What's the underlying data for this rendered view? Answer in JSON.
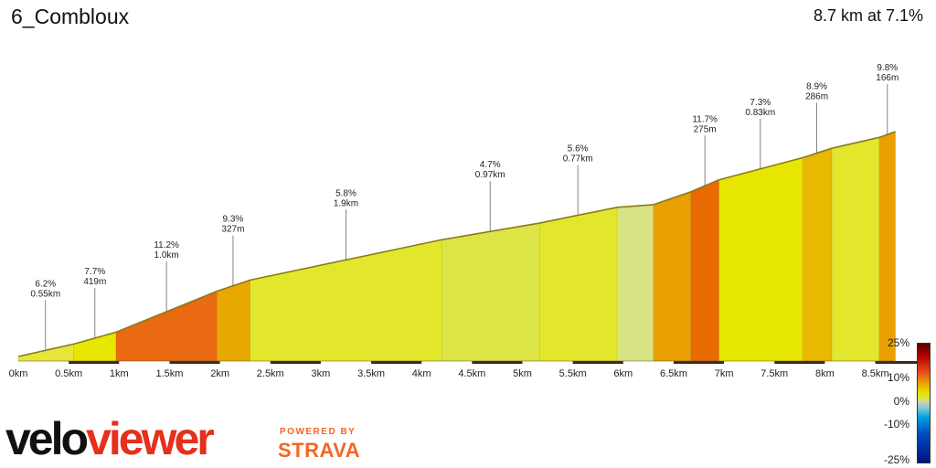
{
  "title": "6_Combloux",
  "summary": "8.7 km at 7.1%",
  "chart_data": {
    "type": "area",
    "xunit": "km",
    "x_ticks": [
      "0km",
      "0.5km",
      "1km",
      "1.5km",
      "2km",
      "2.5km",
      "3km",
      "3.5km",
      "4km",
      "4.5km",
      "5km",
      "5.5km",
      "6km",
      "6.5km",
      "7km",
      "7.5km",
      "8km",
      "8.5km"
    ],
    "xlim": [
      0,
      8.7
    ],
    "segments": [
      {
        "start": 0.0,
        "end": 0.55,
        "gradient": 6.2,
        "length": "0.55km",
        "color": "#e6e63a"
      },
      {
        "start": 0.55,
        "end": 0.97,
        "gradient": 7.7,
        "length": "419m",
        "color": "#e6e600"
      },
      {
        "start": 0.97,
        "end": 1.97,
        "gradient": 11.2,
        "length": "1.0km",
        "color": "#e96a10"
      },
      {
        "start": 1.97,
        "end": 2.3,
        "gradient": 9.3,
        "length": "327m",
        "color": "#e9a800"
      },
      {
        "start": 2.3,
        "end": 4.2,
        "gradient": 5.8,
        "length": "1.9km",
        "color": "#e3e72b"
      },
      {
        "start": 4.2,
        "end": 5.17,
        "gradient": 4.7,
        "length": "0.97km",
        "color": "#dde445"
      },
      {
        "start": 5.17,
        "end": 5.94,
        "gradient": 5.6,
        "length": "0.77km",
        "color": "#e3e72b"
      },
      {
        "start": 5.94,
        "end": 6.3,
        "gradient": 2.0,
        "length": "",
        "color": "#d8e383"
      },
      {
        "start": 6.3,
        "end": 6.67,
        "gradient": 9.5,
        "length": "",
        "color": "#e9a000"
      },
      {
        "start": 6.67,
        "end": 6.95,
        "gradient": 11.7,
        "length": "275m",
        "color": "#e96a00"
      },
      {
        "start": 6.95,
        "end": 7.78,
        "gradient": 7.3,
        "length": "0.83km",
        "color": "#e6e600"
      },
      {
        "start": 7.78,
        "end": 8.07,
        "gradient": 8.9,
        "length": "286m",
        "color": "#e9b800"
      },
      {
        "start": 8.07,
        "end": 8.54,
        "gradient": 6.3,
        "length": "",
        "color": "#e3e72b"
      },
      {
        "start": 8.54,
        "end": 8.7,
        "gradient": 9.8,
        "length": "166m",
        "color": "#e9a000"
      }
    ],
    "annotations": [
      {
        "grad": "6.2%",
        "len": "0.55km",
        "x": 0.27
      },
      {
        "grad": "7.7%",
        "len": "419m",
        "x": 0.76
      },
      {
        "grad": "11.2%",
        "len": "1.0km",
        "x": 1.47
      },
      {
        "grad": "9.3%",
        "len": "327m",
        "x": 2.13
      },
      {
        "grad": "5.8%",
        "len": "1.9km",
        "x": 3.25
      },
      {
        "grad": "4.7%",
        "len": "0.97km",
        "x": 4.68
      },
      {
        "grad": "5.6%",
        "len": "0.77km",
        "x": 5.55
      },
      {
        "grad": "11.7%",
        "len": "275m",
        "x": 6.81
      },
      {
        "grad": "7.3%",
        "len": "0.83km",
        "x": 7.36
      },
      {
        "grad": "8.9%",
        "len": "286m",
        "x": 7.92
      },
      {
        "grad": "9.8%",
        "len": "166m",
        "x": 8.62
      }
    ],
    "legend": {
      "labels": [
        "25%",
        "10%",
        "0%",
        "-10%",
        "-25%"
      ]
    }
  },
  "branding": {
    "velo": "velo",
    "viewer": "viewer",
    "powered_by": "POWERED BY",
    "strava": "STRAVA"
  }
}
